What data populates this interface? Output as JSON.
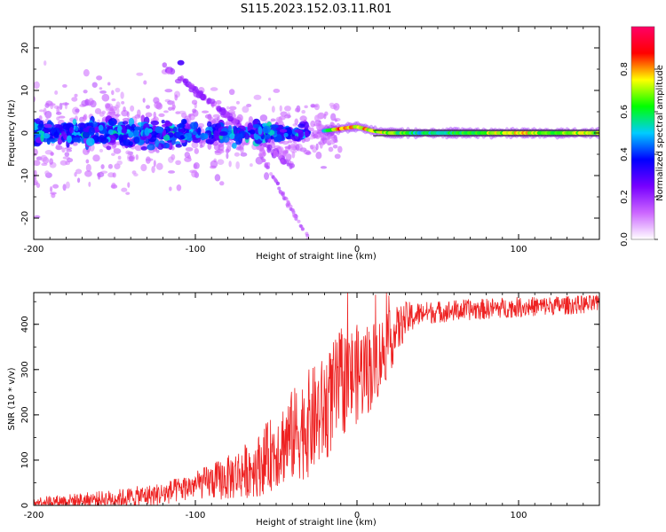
{
  "title": "S115.2023.152.03.11.R01",
  "colors": {
    "snr_line": "#ee2222",
    "ridge": "#111111",
    "background": "#ffffff"
  },
  "chart_data": [
    {
      "type": "heatmap",
      "name": "spectrogram",
      "xlabel": "Height of straight line (km)",
      "ylabel": "Frequency (Hz)",
      "xlim": [
        -200,
        150
      ],
      "ylim": [
        -25,
        25
      ],
      "x_ticks": [
        -200,
        -100,
        0,
        100
      ],
      "x_tick_labels": [
        "-200",
        "-100",
        "0",
        "100"
      ],
      "y_ticks": [
        -20,
        -10,
        0,
        10,
        20
      ],
      "y_tick_labels": [
        "-20",
        "-10",
        "0",
        "10",
        "20"
      ],
      "colorbar": {
        "label": "Normalized spectral amplitude",
        "range": [
          0,
          1
        ],
        "ticks": [
          0.0,
          0.2,
          0.4,
          0.6,
          0.8
        ],
        "tick_labels": [
          "0.0",
          "0.2",
          "0.4",
          "0.6",
          "0.8"
        ],
        "colors": [
          "#ffffff",
          "#cc66ff",
          "#7700ff",
          "#0000ff",
          "#00ccff",
          "#00ff00",
          "#ffff00",
          "#ff0000",
          "#ff0066"
        ]
      },
      "ridge": {
        "frequency_hz": 0,
        "x_start_km": -20,
        "x_end_km": 150,
        "description_values": [
          {
            "x": -20,
            "freq": 0.5,
            "amp": 0.55
          },
          {
            "x": -10,
            "freq": 1.0,
            "amp": 0.85
          },
          {
            "x": 0,
            "freq": 1.5,
            "amp": 0.8
          },
          {
            "x": 10,
            "freq": 0.5,
            "amp": 0.75
          },
          {
            "x": 20,
            "freq": 0,
            "amp": 0.7
          },
          {
            "x": 40,
            "freq": 0,
            "amp": 0.55
          },
          {
            "x": 60,
            "freq": 0,
            "amp": 0.6
          },
          {
            "x": 80,
            "freq": 0,
            "amp": 0.7
          },
          {
            "x": 100,
            "freq": 0,
            "amp": 0.75
          },
          {
            "x": 120,
            "freq": 0,
            "amp": 0.7
          },
          {
            "x": 150,
            "freq": 0,
            "amp": 0.7
          }
        ]
      }
    },
    {
      "type": "line",
      "name": "snr",
      "xlabel": "Height of straight line (km)",
      "ylabel": "SNR (10 * v/v)",
      "xlim": [
        -200,
        150
      ],
      "ylim": [
        0,
        470
      ],
      "x_ticks": [
        -200,
        -100,
        0,
        100
      ],
      "x_tick_labels": [
        "-200",
        "-100",
        "0",
        "100"
      ],
      "y_ticks": [
        0,
        100,
        200,
        300,
        400
      ],
      "y_tick_labels": [
        "0",
        "100",
        "200",
        "300",
        "400"
      ],
      "trend": [
        {
          "x": -200,
          "y": 8
        },
        {
          "x": -150,
          "y": 15
        },
        {
          "x": -120,
          "y": 25
        },
        {
          "x": -100,
          "y": 45
        },
        {
          "x": -80,
          "y": 60
        },
        {
          "x": -60,
          "y": 90
        },
        {
          "x": -45,
          "y": 140
        },
        {
          "x": -30,
          "y": 180
        },
        {
          "x": -20,
          "y": 210
        },
        {
          "x": -10,
          "y": 270
        },
        {
          "x": 0,
          "y": 290
        },
        {
          "x": 10,
          "y": 310
        },
        {
          "x": 20,
          "y": 360
        },
        {
          "x": 30,
          "y": 410
        },
        {
          "x": 40,
          "y": 425
        },
        {
          "x": 60,
          "y": 430
        },
        {
          "x": 100,
          "y": 438
        },
        {
          "x": 150,
          "y": 445
        }
      ],
      "noise_amplitude": [
        {
          "x": -200,
          "a": 10
        },
        {
          "x": -100,
          "a": 30
        },
        {
          "x": -60,
          "a": 70
        },
        {
          "x": -30,
          "a": 120
        },
        {
          "x": -10,
          "a": 120
        },
        {
          "x": 10,
          "a": 100
        },
        {
          "x": 30,
          "a": 40
        },
        {
          "x": 40,
          "a": 25
        },
        {
          "x": 150,
          "a": 20
        }
      ]
    }
  ]
}
